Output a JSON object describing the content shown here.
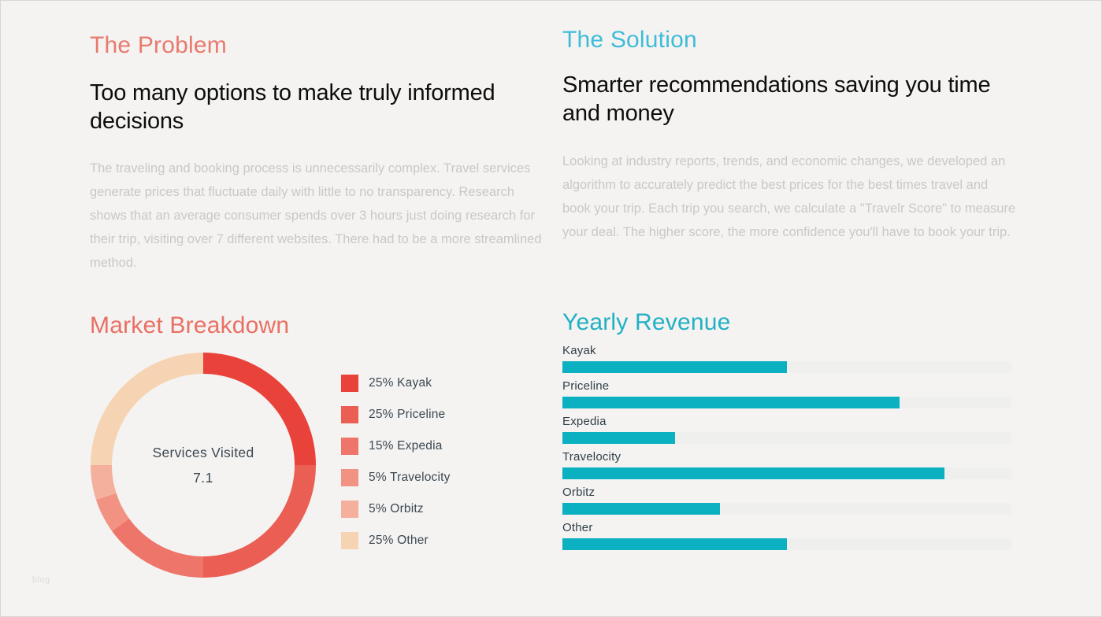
{
  "page": {
    "background": "#f4f3f1",
    "watermark": "blog"
  },
  "problem": {
    "title": "The Problem",
    "accent": "#e87a6e",
    "subtitle": "Too many options to make truly informed decisions",
    "body": "The traveling and booking process is unnecessarily complex. Travel services generate prices that fluctuate daily with little to no transparency. Research shows that an average consumer spends over 3 hours just doing research for their trip, visiting over 7 different websites. There had to be a more streamlined method."
  },
  "solution": {
    "title": "The Solution",
    "accent": "#3ebcd8",
    "subtitle": "Smarter recommendations saving you time and money",
    "body": "Looking at industry reports, trends, and economic changes, we developed an algorithm to accurately predict the best prices for the best times travel and book your trip. Each trip you search, we calculate a \"Travelr Score\" to measure your deal. The higher score, the more confidence you'll have to book your trip."
  },
  "market_breakdown": {
    "accent": "#e87064"
  },
  "yearly_revenue": {
    "accent": "#22b0c5"
  },
  "chart_data": [
    {
      "type": "pie",
      "subtype": "donut",
      "title": "Market Breakdown",
      "center_label": "Services Visited",
      "center_value": "7.1",
      "start_angle_deg": 0,
      "direction": "clockwise",
      "legend_position": "right",
      "segments": [
        {
          "label": "Kayak",
          "value": 25,
          "color": "#e8423a"
        },
        {
          "label": "Priceline",
          "value": 25,
          "color": "#eb5e54"
        },
        {
          "label": "Expedia",
          "value": 15,
          "color": "#ee756a"
        },
        {
          "label": "Travelocity",
          "value": 5,
          "color": "#f29283"
        },
        {
          "label": "Orbitz",
          "value": 5,
          "color": "#f5b09d"
        },
        {
          "label": "Other",
          "value": 25,
          "color": "#f6d4b3"
        }
      ]
    },
    {
      "type": "bar",
      "orientation": "horizontal",
      "title": "Yearly Revenue",
      "categories": [
        "Kayak",
        "Priceline",
        "Expedia",
        "Travelocity",
        "Orbitz",
        "Other"
      ],
      "values": [
        50,
        75,
        25,
        85,
        35,
        50
      ],
      "value_unit": "percent_of_track_width",
      "xlim": [
        0,
        100
      ],
      "bar_color": "#0bb1c1",
      "track_color": "#efefed",
      "grid": false,
      "axis_labels_shown": false
    }
  ]
}
